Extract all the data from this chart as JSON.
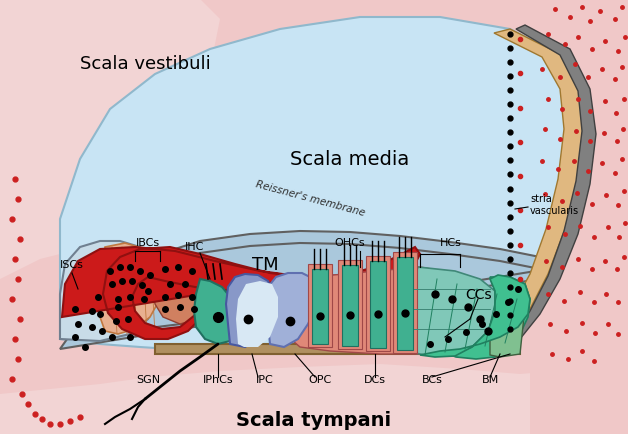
{
  "fig_w": 6.28,
  "fig_h": 4.35,
  "dpi": 100,
  "bg_color": "#f0c8c8",
  "sv_color": "#f2d4d4",
  "st_color": "#f2d4d4",
  "sm_color": "#c8e4f4",
  "rm_color": "#aac8dc",
  "rm_edge": "#606060",
  "TM_color": "#cc1a1a",
  "TM_edge": "#901010",
  "ISC_color": "#c8dce8",
  "ISC_edge": "#708090",
  "IBC_color": "#e8b090",
  "IBC_edge": "#c07840",
  "spiral_color": "#d08060",
  "IHC_color": "#40b090",
  "IHC_edge": "#207060",
  "IPC_color": "#8898c8",
  "IPC_edge": "#4858a0",
  "OPC_color": "#a0b0d8",
  "OPC_edge": "#6070b0",
  "tunnel_color": "#d8e8f4",
  "OHC_bg_color": "#e08878",
  "OHC_cell_color": "#40b090",
  "OHC_edge": "#207060",
  "DC_color": "#e08878",
  "DC_edge": "#a04848",
  "HC_color": "#80c8b8",
  "HC_edge": "#408878",
  "CC_color": "#40c090",
  "CC_edge": "#208060",
  "BC_color": "#80c090",
  "stria_color": "#e0b880",
  "stria_edge": "#a07830",
  "lateral_color": "#808080",
  "lateral_edge": "#404040",
  "bm_color": "#b09060",
  "bm_edge": "#806030",
  "scala_vestibuli_label": "Scala vestibuli",
  "scala_media_label": "Scala media",
  "scala_tympani_label": "Scala tympani",
  "reissner_label": "Reissner's membrane"
}
